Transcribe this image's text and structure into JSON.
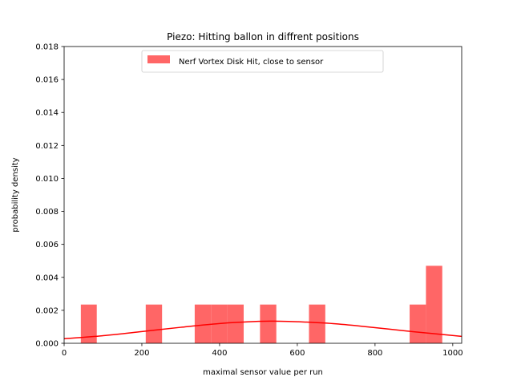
{
  "chart_data": {
    "type": "bar",
    "title": "Piezo: Hitting ballon in diffrent positions",
    "xlabel": "maximal sensor value per run",
    "ylabel": "probability density",
    "xlim": [
      0,
      1023
    ],
    "ylim": [
      0,
      0.018
    ],
    "xticks": [
      "0",
      "200",
      "400",
      "600",
      "800",
      "1000"
    ],
    "yticks": [
      "0.000",
      "0.002",
      "0.004",
      "0.006",
      "0.008",
      "0.010",
      "0.012",
      "0.014",
      "0.016",
      "0.018"
    ],
    "grid": false,
    "legend_position": "upper center",
    "series": [
      {
        "name": "Nerf Vortex Disk Hit, close to sensor",
        "kind": "histogram",
        "color": "#ff6666",
        "bins": [
          {
            "x0": 43,
            "x1": 84,
            "value": 0.00235
          },
          {
            "x0": 210,
            "x1": 252,
            "value": 0.00235
          },
          {
            "x0": 336,
            "x1": 378,
            "value": 0.00235
          },
          {
            "x0": 378,
            "x1": 420,
            "value": 0.00235
          },
          {
            "x0": 420,
            "x1": 462,
            "value": 0.00235
          },
          {
            "x0": 504,
            "x1": 546,
            "value": 0.00235
          },
          {
            "x0": 630,
            "x1": 672,
            "value": 0.00235
          },
          {
            "x0": 889,
            "x1": 931,
            "value": 0.00235
          },
          {
            "x0": 931,
            "x1": 973,
            "value": 0.0047
          }
        ]
      },
      {
        "kind": "line",
        "color": "#ff0000",
        "x": [
          0,
          100,
          200,
          300,
          400,
          500,
          550,
          600,
          700,
          800,
          900,
          1023
        ],
        "y": [
          0.00028,
          0.00046,
          0.00071,
          0.00097,
          0.0012,
          0.00133,
          0.00134,
          0.00131,
          0.00118,
          0.00095,
          0.0007,
          0.00042
        ]
      }
    ]
  }
}
